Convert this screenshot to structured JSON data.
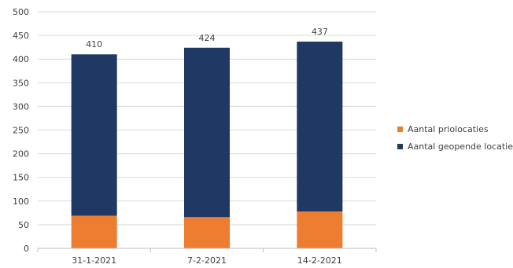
{
  "chart_data": {
    "type": "bar",
    "stacked": true,
    "title": "",
    "xlabel": "",
    "ylabel": "",
    "categories": [
      "31-1-2021",
      "7-2-2021",
      "14-2-2021"
    ],
    "ylim": [
      0,
      500
    ],
    "yticks": [
      0,
      50,
      100,
      150,
      200,
      250,
      300,
      350,
      400,
      450,
      500
    ],
    "grid": true,
    "legend_position": "right",
    "series": [
      {
        "name": "Aantal priolocaties",
        "color": "#ED7D31",
        "values": [
          69,
          66,
          78
        ]
      },
      {
        "name": "Aantal geopende locaties",
        "color": "#1F3864",
        "values": [
          341,
          358,
          359
        ]
      }
    ],
    "totals": [
      "410",
      "424",
      "437"
    ]
  },
  "legend": {
    "items": [
      {
        "label": "Aantal priolocaties",
        "color": "#ED7D31"
      },
      {
        "label": "Aantal geopende locaties",
        "color": "#1F3864"
      }
    ]
  }
}
